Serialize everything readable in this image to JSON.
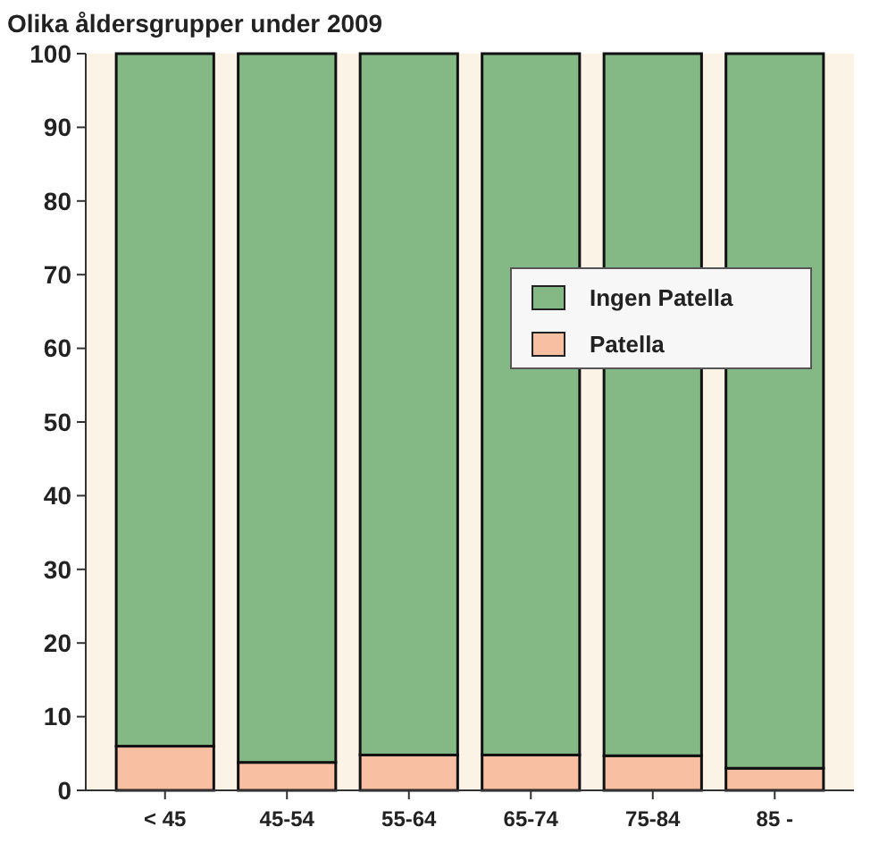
{
  "chart_data": {
    "type": "bar",
    "title": "Olika åldersgrupper under 2009",
    "categories": [
      "< 45",
      "45-54",
      "55-64",
      "65-74",
      "75-84",
      "85 -"
    ],
    "stacked": true,
    "series": [
      {
        "name": "Patella",
        "color": "#f9bfa3",
        "values": [
          6,
          3.8,
          4.8,
          4.8,
          4.7,
          3
        ]
      },
      {
        "name": "Ingen Patella",
        "color": "#84b985",
        "values": [
          94,
          96.2,
          95.2,
          95.2,
          95.3,
          97
        ]
      }
    ],
    "ylim": [
      0,
      100
    ],
    "yticks": [
      0,
      10,
      20,
      30,
      40,
      50,
      60,
      70,
      80,
      90,
      100
    ],
    "grid": false,
    "legend": "right"
  }
}
